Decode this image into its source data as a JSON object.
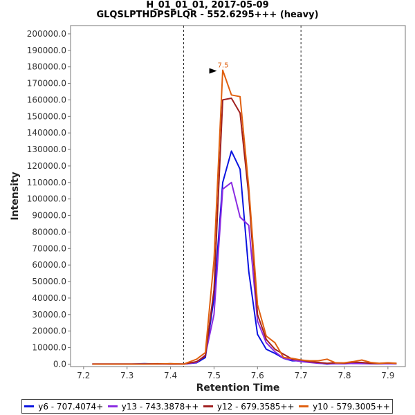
{
  "chart_data": {
    "type": "line",
    "title": "H_01_01_01, 2017-05-09",
    "subtitle": "GLQSLPTHDPSPLQR - 552.6295+++ (heavy)",
    "xlabel": "Retention Time",
    "ylabel": "Intensity",
    "xlim": [
      7.17,
      7.94
    ],
    "ylim": [
      -1500,
      205000
    ],
    "xticks": [
      "7.2",
      "7.3",
      "7.4",
      "7.5",
      "7.6",
      "7.7",
      "7.8",
      "7.9"
    ],
    "xtick_values": [
      7.2,
      7.3,
      7.4,
      7.5,
      7.6,
      7.7,
      7.8,
      7.9
    ],
    "yticks": [
      "0.0",
      "10000.0",
      "20000.0",
      "30000.0",
      "40000.0",
      "50000.0",
      "60000.0",
      "70000.0",
      "80000.0",
      "90000.0",
      "100000.0",
      "110000.0",
      "120000.0",
      "130000.0",
      "140000.0",
      "150000.0",
      "160000.0",
      "170000.0",
      "180000.0",
      "190000.0",
      "200000.0"
    ],
    "ytick_values": [
      0,
      10000,
      20000,
      30000,
      40000,
      50000,
      60000,
      70000,
      80000,
      90000,
      100000,
      110000,
      120000,
      130000,
      140000,
      150000,
      160000,
      170000,
      180000,
      190000,
      200000
    ],
    "boundaries": [
      7.43,
      7.7
    ],
    "peak_label": "7.5",
    "peak_x": 7.505,
    "peak_y": 178000,
    "series": [
      {
        "name": "y6 - 707.4074+",
        "color": "#0a14e0",
        "x": [
          7.22,
          7.25,
          7.28,
          7.31,
          7.34,
          7.37,
          7.4,
          7.43,
          7.46,
          7.48,
          7.5,
          7.52,
          7.54,
          7.56,
          7.58,
          7.6,
          7.62,
          7.64,
          7.66,
          7.68,
          7.7,
          7.72,
          7.74,
          7.76,
          7.78,
          7.8,
          7.82,
          7.84,
          7.86,
          7.88,
          7.9,
          7.92
        ],
        "values": [
          0,
          0,
          0,
          0,
          300,
          0,
          200,
          0,
          800,
          4000,
          40000,
          110000,
          129000,
          118000,
          56000,
          18000,
          9000,
          6500,
          3500,
          2000,
          2000,
          1500,
          700,
          0,
          400,
          300,
          600,
          500,
          300,
          200,
          500,
          300
        ]
      },
      {
        "name": "y13 - 743.3878++",
        "color": "#8a2be2",
        "x": [
          7.22,
          7.25,
          7.28,
          7.31,
          7.34,
          7.37,
          7.4,
          7.43,
          7.46,
          7.48,
          7.5,
          7.52,
          7.54,
          7.56,
          7.58,
          7.6,
          7.62,
          7.64,
          7.66,
          7.68,
          7.7,
          7.72,
          7.74,
          7.76,
          7.78,
          7.8,
          7.82,
          7.84,
          7.86,
          7.88,
          7.9,
          7.92
        ],
        "values": [
          0,
          0,
          0,
          0,
          0,
          0,
          0,
          0,
          1000,
          5500,
          30000,
          106000,
          110000,
          89000,
          84000,
          26000,
          13000,
          7500,
          3500,
          2500,
          1500,
          1000,
          500,
          200,
          300,
          200,
          400,
          300,
          200,
          200,
          300,
          200
        ]
      },
      {
        "name": "y12 - 679.3585++",
        "color": "#a02020",
        "x": [
          7.22,
          7.25,
          7.28,
          7.31,
          7.34,
          7.37,
          7.4,
          7.43,
          7.46,
          7.48,
          7.5,
          7.52,
          7.54,
          7.56,
          7.58,
          7.6,
          7.62,
          7.64,
          7.66,
          7.68,
          7.7,
          7.72,
          7.74,
          7.76,
          7.78,
          7.8,
          7.82,
          7.84,
          7.86,
          7.88,
          7.9,
          7.92
        ],
        "values": [
          0,
          0,
          0,
          0,
          0,
          200,
          0,
          0,
          1500,
          5000,
          45000,
          160000,
          161000,
          152000,
          102000,
          30000,
          15000,
          9000,
          6000,
          3000,
          2500,
          1500,
          1000,
          500,
          800,
          600,
          1200,
          1000,
          500,
          400,
          700,
          400
        ]
      },
      {
        "name": "y10 - 579.3005++",
        "color": "#e06010",
        "x": [
          7.22,
          7.25,
          7.28,
          7.31,
          7.34,
          7.37,
          7.4,
          7.43,
          7.46,
          7.48,
          7.5,
          7.52,
          7.54,
          7.56,
          7.58,
          7.6,
          7.62,
          7.64,
          7.66,
          7.68,
          7.7,
          7.72,
          7.74,
          7.76,
          7.78,
          7.8,
          7.82,
          7.84,
          7.86,
          7.88,
          7.9,
          7.92
        ],
        "values": [
          0,
          0,
          0,
          0,
          0,
          0,
          300,
          0,
          3000,
          7000,
          63000,
          178000,
          163000,
          162000,
          107000,
          36000,
          17000,
          13000,
          4000,
          3500,
          2500,
          2000,
          2000,
          3000,
          700,
          800,
          1500,
          2500,
          1000,
          500,
          800,
          500
        ]
      }
    ]
  }
}
